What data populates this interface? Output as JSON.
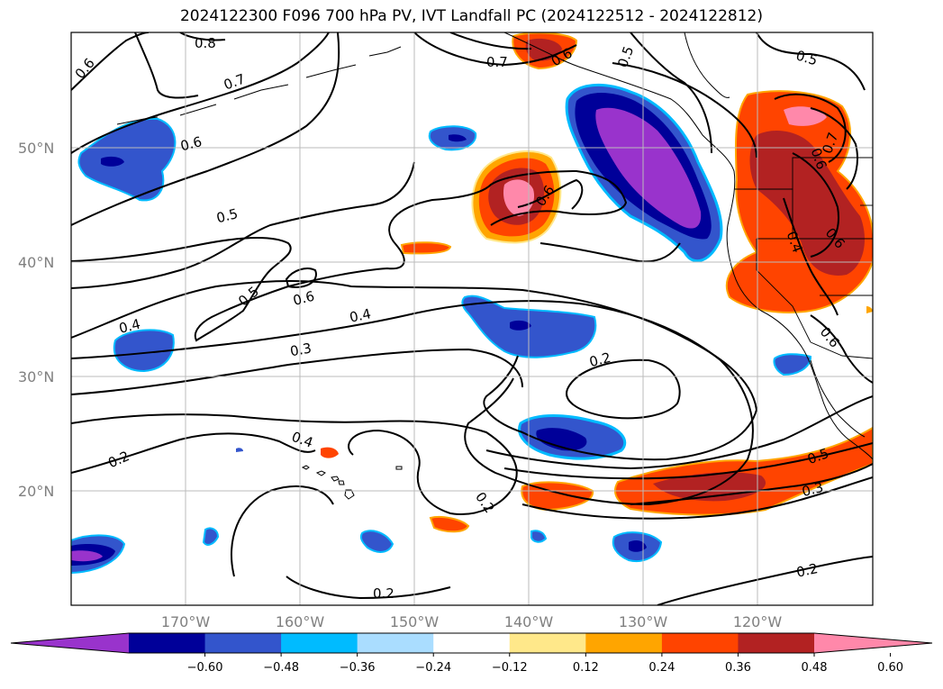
{
  "title": "2024122300 F096 700 hPa PV, IVT Landfall PC (2024122512 - 2024122812)",
  "map": {
    "lat_labels": [
      "50°N",
      "40°N",
      "30°N",
      "20°N"
    ],
    "lon_labels": [
      "170°W",
      "160°W",
      "150°W",
      "140°W",
      "130°W",
      "120°W"
    ],
    "lat_range": [
      10,
      60
    ],
    "lon_range": [
      -180,
      -110
    ],
    "grid": true
  },
  "contour_labels": [
    "0.8",
    "0.7",
    "0.6",
    "0.6",
    "0.5",
    "0.5",
    "0.6",
    "0.4",
    "0.4",
    "0.3",
    "0.2",
    "0.2",
    "0.4",
    "0.2",
    "0.5",
    "0.3",
    "0.2",
    "0.2",
    "0.7",
    "0.6",
    "0.5",
    "0.6",
    "0.7",
    "0.6",
    "0.4",
    "0.6",
    "0.6",
    "0.5"
  ],
  "colorbar": {
    "ticks": [
      "−0.60",
      "−0.48",
      "−0.36",
      "−0.24",
      "−0.12",
      "0.12",
      "0.24",
      "0.36",
      "0.48",
      "0.60"
    ],
    "colors": [
      "#9933cc",
      "#000099",
      "#3355cc",
      "#00bbff",
      "#aaddff",
      "#ffffff",
      "#ffe88a",
      "#ffa500",
      "#ff4400",
      "#b22222",
      "#ff88aa"
    ]
  }
}
